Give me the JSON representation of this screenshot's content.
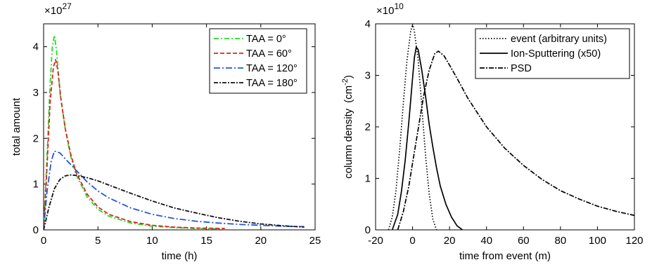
{
  "chart_data": [
    {
      "type": "line",
      "xlabel": "time (h)",
      "ylabel": "total amount",
      "y_multiplier": {
        "base": "×10",
        "exponent": "27"
      },
      "xlim": [
        0,
        25
      ],
      "ylim": [
        0,
        4.5
      ],
      "xticks": [
        0,
        5,
        10,
        15,
        20,
        25
      ],
      "yticks": [
        0,
        1,
        2,
        3,
        4
      ],
      "grid": false,
      "legend": "top-right",
      "series": [
        {
          "name": "TAA = 0°",
          "color": "#22dd22",
          "dash": "7,3,2,3",
          "x": [
            0,
            0.3,
            0.6,
            0.8,
            1.0,
            1.2,
            1.5,
            2,
            2.5,
            3,
            4,
            5,
            6,
            8,
            10,
            12,
            14,
            16.5
          ],
          "y": [
            0,
            1.5,
            3.2,
            4.0,
            4.25,
            3.9,
            3.0,
            2.2,
            1.6,
            1.2,
            0.72,
            0.45,
            0.3,
            0.15,
            0.08,
            0.05,
            0.03,
            0.02
          ]
        },
        {
          "name": "TAA = 60°",
          "color": "#dd2222",
          "dash": "6,3",
          "x": [
            0,
            0.3,
            0.6,
            0.9,
            1.1,
            1.3,
            1.6,
            2,
            2.5,
            3,
            4,
            5,
            6,
            8,
            10,
            12,
            14,
            16.7
          ],
          "y": [
            0,
            1.3,
            2.8,
            3.55,
            3.72,
            3.5,
            2.85,
            2.2,
            1.65,
            1.25,
            0.78,
            0.5,
            0.34,
            0.18,
            0.1,
            0.06,
            0.04,
            0.03
          ]
        },
        {
          "name": "TAA = 120°",
          "color": "#2255dd",
          "dash": "9,3,2,3",
          "x": [
            0,
            0.3,
            0.7,
            1.0,
            1.5,
            2,
            3,
            4,
            5,
            6,
            8,
            10,
            12,
            14,
            16,
            18,
            20,
            22,
            24
          ],
          "y": [
            0,
            0.8,
            1.5,
            1.72,
            1.68,
            1.55,
            1.3,
            1.05,
            0.85,
            0.7,
            0.48,
            0.34,
            0.25,
            0.19,
            0.15,
            0.12,
            0.1,
            0.08,
            0.07
          ]
        },
        {
          "name": "TAA = 180°",
          "color": "#111111",
          "dash": "6,2,2,2",
          "x": [
            0,
            0.5,
            1,
            1.5,
            2,
            2.5,
            3,
            4,
            5,
            6,
            8,
            10,
            12,
            14,
            16,
            18,
            20,
            22,
            24
          ],
          "y": [
            0,
            0.5,
            0.9,
            1.1,
            1.18,
            1.2,
            1.19,
            1.14,
            1.07,
            0.98,
            0.8,
            0.63,
            0.48,
            0.37,
            0.27,
            0.19,
            0.13,
            0.09,
            0.06
          ]
        }
      ]
    },
    {
      "type": "line",
      "xlabel": "time from event (m)",
      "ylabel": "column density",
      "ylabel_unit": {
        "base": "(cm",
        "exponent": "-2",
        "close": ")"
      },
      "y_multiplier": {
        "base": "×10",
        "exponent": "10"
      },
      "xlim": [
        -20,
        120
      ],
      "ylim": [
        0,
        4
      ],
      "xticks": [
        -20,
        0,
        20,
        40,
        60,
        80,
        100,
        120
      ],
      "yticks": [
        0,
        1,
        2,
        3,
        4
      ],
      "grid": false,
      "legend": "top-right",
      "series": [
        {
          "name": "event (arbitrary units)",
          "color": "#000000",
          "dash": "1.5,2.5",
          "x": [
            -13,
            -11,
            -9,
            -7,
            -5,
            -3,
            -1,
            0,
            1,
            3,
            5,
            7,
            9,
            11,
            13
          ],
          "y": [
            0,
            0.25,
            0.75,
            1.55,
            2.45,
            3.3,
            3.85,
            4.0,
            3.85,
            3.3,
            2.4,
            1.45,
            0.7,
            0.2,
            0
          ]
        },
        {
          "name": "Ion-Sputtering (x50)",
          "color": "#000000",
          "dash": "",
          "x": [
            -11,
            -8,
            -6,
            -4,
            -2,
            0,
            1,
            2,
            3,
            5,
            7,
            9,
            11,
            13,
            15,
            18,
            21,
            24,
            27
          ],
          "y": [
            0,
            0.3,
            0.75,
            1.35,
            2.1,
            2.95,
            3.35,
            3.55,
            3.5,
            3.1,
            2.6,
            2.05,
            1.6,
            1.2,
            0.85,
            0.5,
            0.25,
            0.08,
            0
          ]
        },
        {
          "name": "PSD",
          "color": "#000000",
          "dash": "7,2,2,2",
          "x": [
            -8,
            -5,
            -2,
            0,
            3,
            6,
            9,
            12,
            14,
            17,
            20,
            25,
            30,
            40,
            50,
            60,
            70,
            80,
            90,
            100,
            110,
            120
          ],
          "y": [
            0,
            0.35,
            0.85,
            1.3,
            1.95,
            2.6,
            3.1,
            3.42,
            3.47,
            3.38,
            3.2,
            2.88,
            2.55,
            2.0,
            1.58,
            1.25,
            0.98,
            0.76,
            0.6,
            0.46,
            0.36,
            0.28
          ]
        }
      ]
    }
  ]
}
